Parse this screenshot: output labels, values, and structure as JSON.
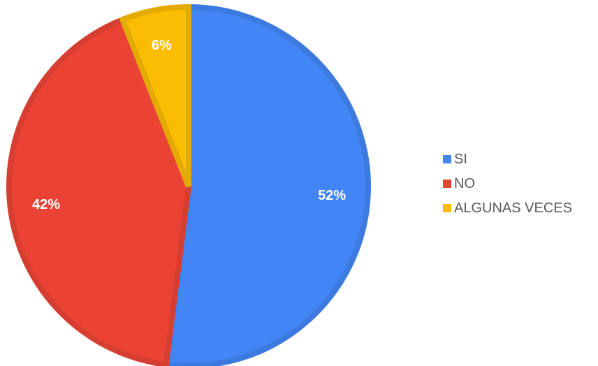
{
  "chart_data": {
    "type": "pie",
    "categories": [
      "SI",
      "NO",
      "ALGUNAS VECES"
    ],
    "values": [
      52,
      42,
      6
    ],
    "data_labels": [
      "52%",
      "42%",
      "6%"
    ],
    "colors": [
      "#4285f4",
      "#ea4335",
      "#fbbc04"
    ],
    "edge_colors": [
      "#3d7ae0",
      "#d53e31",
      "#e3aa04"
    ],
    "title": "",
    "legend_position": "right"
  }
}
